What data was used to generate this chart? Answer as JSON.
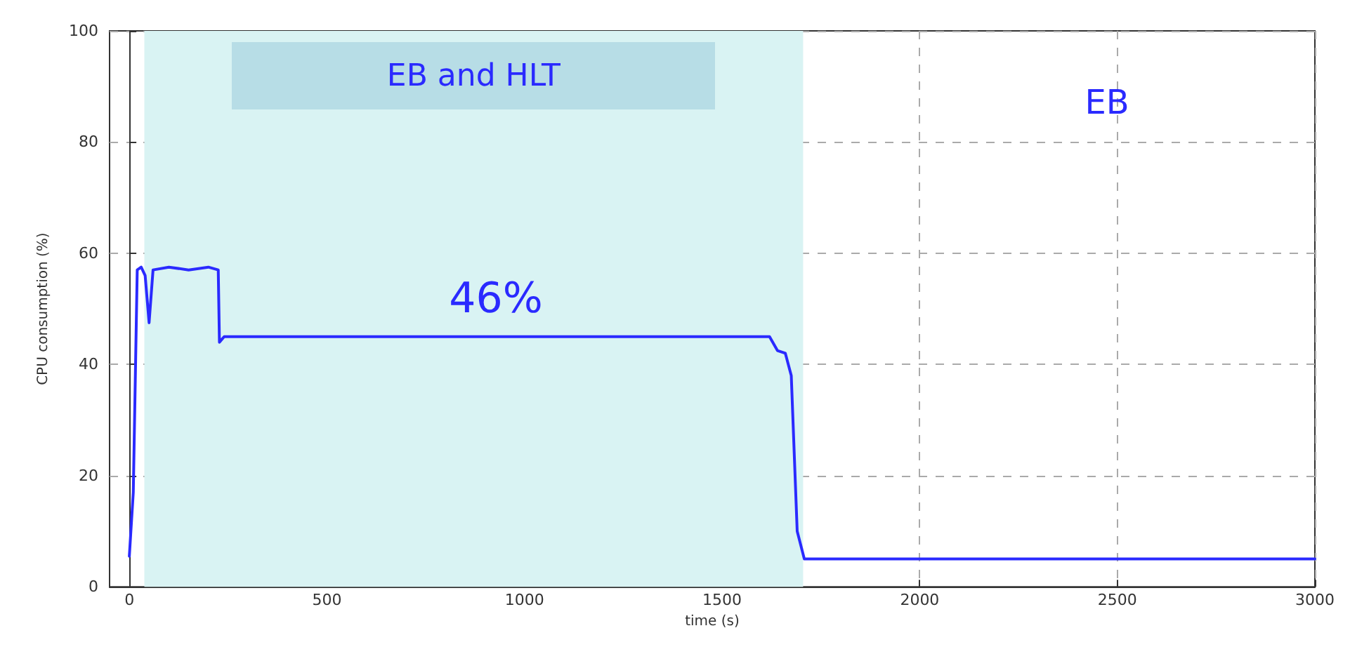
{
  "chart_data": {
    "type": "line",
    "xlabel": "time (s)",
    "ylabel": "CPU consumption (%)",
    "x": [
      0,
      10,
      20,
      30,
      40,
      50,
      60,
      100,
      150,
      200,
      225,
      228,
      240,
      500,
      1000,
      1500,
      1620,
      1640,
      1660,
      1675,
      1690,
      1708,
      2000,
      2500,
      3000
    ],
    "series": [
      {
        "color": "#2a2aff",
        "values": [
          5.5,
          17,
          57,
          57.5,
          56,
          47.5,
          57,
          57.5,
          57,
          57.5,
          57,
          44,
          45,
          45,
          45,
          45,
          45,
          42.5,
          42,
          38,
          10,
          5,
          5,
          5,
          5
        ]
      }
    ],
    "xlim": [
      -50,
      3000
    ],
    "ylim": [
      0,
      100
    ],
    "xticks": [
      0,
      500,
      1000,
      1500,
      2000,
      2500,
      3000
    ],
    "yticks": [
      0,
      20,
      40,
      60,
      80,
      100
    ],
    "bands": [
      {
        "axis": "x",
        "from": 38,
        "to": 1705,
        "label": "EB and HLT",
        "color": "#d9f3f3"
      }
    ],
    "annotations": [
      "46%",
      "EB"
    ],
    "grid": true,
    "marker": "none",
    "line_style": "solid"
  }
}
